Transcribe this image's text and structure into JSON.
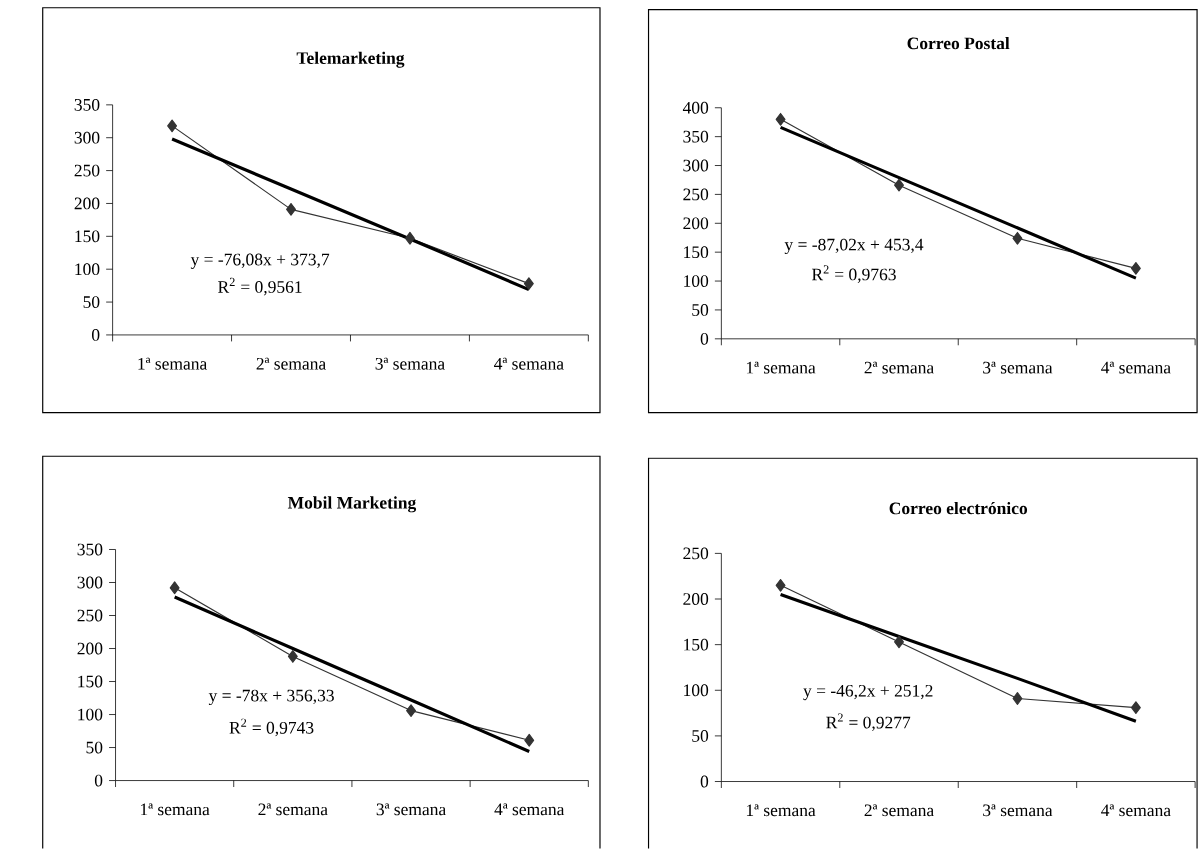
{
  "chart_data": [
    {
      "type": "line",
      "title": "Telemarketing",
      "categories": [
        "1ª semana",
        "2ª semana",
        "3ª semana",
        "4ª semana"
      ],
      "series": [
        {
          "color": "#333333",
          "marker": "diamond",
          "values": [
            318,
            191,
            147,
            78
          ]
        },
        {
          "color": "#000000",
          "marker": "none",
          "values": [
            298,
            222,
            146,
            69
          ]
        }
      ],
      "ylim": [
        0,
        350
      ],
      "yticks": [
        0,
        50,
        100,
        150,
        200,
        250,
        300,
        350
      ],
      "annotations": [
        "y = -76,08x + 373,7",
        "R$^{2}$ = 0,9561"
      ]
    },
    {
      "type": "line",
      "title": "Correo Postal",
      "categories": [
        "1ª semana",
        "2ª semana",
        "3ª semana",
        "4ª semana"
      ],
      "series": [
        {
          "color": "#333333",
          "marker": "diamond",
          "values": [
            380,
            266,
            174,
            122
          ]
        },
        {
          "color": "#000000",
          "marker": "none",
          "values": [
            366,
            279,
            192,
            105
          ]
        }
      ],
      "ylim": [
        0,
        400
      ],
      "yticks": [
        0,
        50,
        100,
        150,
        200,
        250,
        300,
        350,
        400
      ],
      "annotations": [
        "y = -87,02x + 453,4",
        "R$^{2}$ = 0,9763"
      ]
    },
    {
      "type": "line",
      "title": "Mobil Marketing",
      "categories": [
        "1ª semana",
        "2ª semana",
        "3ª semana",
        "4ª semana"
      ],
      "series": [
        {
          "color": "#333333",
          "marker": "diamond",
          "values": [
            292,
            188,
            106,
            61
          ]
        },
        {
          "color": "#000000",
          "marker": "none",
          "values": [
            278,
            200,
            122,
            44
          ]
        }
      ],
      "ylim": [
        0,
        350
      ],
      "yticks": [
        0,
        50,
        100,
        150,
        200,
        250,
        300,
        350
      ],
      "annotations": [
        "y = -78x + 356,33",
        "R$^{2}$ = 0,9743"
      ]
    },
    {
      "type": "line",
      "title": "Correo electrónico",
      "categories": [
        "1ª semana",
        "2ª semana",
        "3ª semana",
        "4ª semana"
      ],
      "series": [
        {
          "color": "#333333",
          "marker": "diamond",
          "values": [
            215,
            153,
            91,
            81
          ]
        },
        {
          "color": "#000000",
          "marker": "none",
          "values": [
            205,
            159,
            113,
            66
          ]
        }
      ],
      "ylim": [
        0,
        250
      ],
      "yticks": [
        0,
        50,
        100,
        150,
        200,
        250
      ],
      "annotations": [
        "y = -46,2x + 251,2",
        "R$^{2}$ = 0,9277"
      ]
    }
  ]
}
